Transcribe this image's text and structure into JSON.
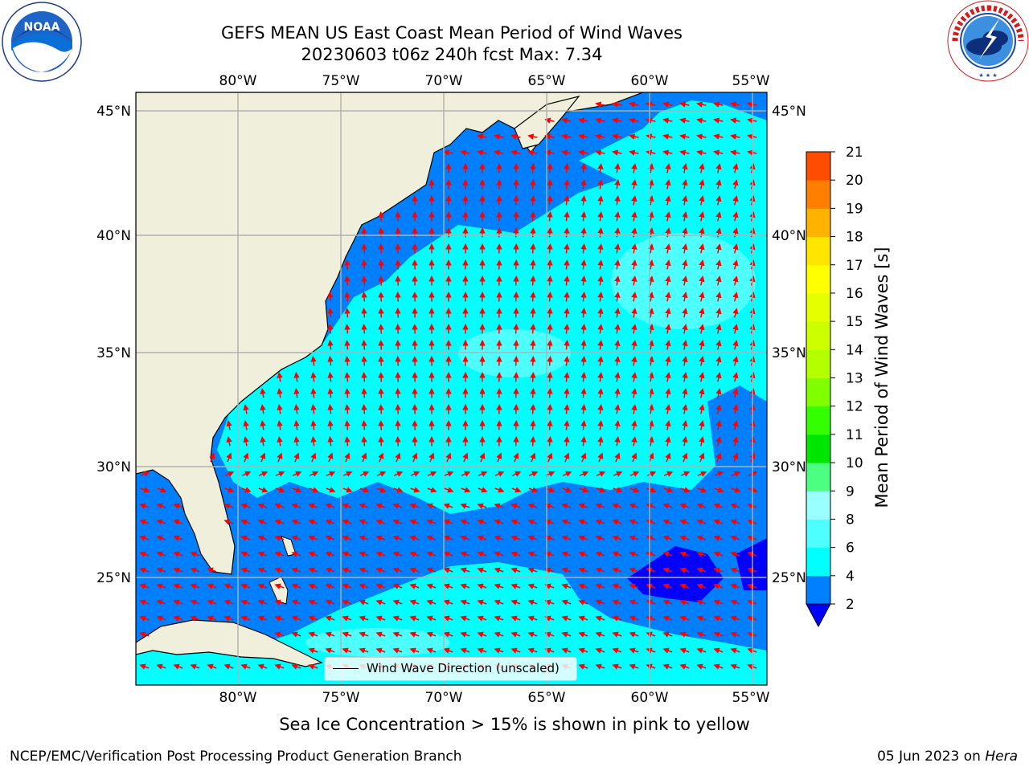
{
  "title": {
    "line1": "GEFS MEAN US East Coast Mean Period of Wind Waves",
    "line2": "20230603 t06z 240h fcst   Max: 7.34"
  },
  "logos": {
    "left": "NOAA",
    "right": "NATIONAL WEATHER SERVICE"
  },
  "map": {
    "lon_ticks": [
      "80°W",
      "75°W",
      "70°W",
      "65°W",
      "60°W",
      "55°W"
    ],
    "lat_ticks": [
      "45°N",
      "40°N",
      "35°N",
      "30°N",
      "25°N"
    ],
    "lon_range": [
      -85,
      -54.4
    ],
    "lat_range": [
      20.4,
      45.9
    ],
    "colors": {
      "land": "#efefdc",
      "level_2_4": "#0080ff",
      "level_4_6": "#00ffff",
      "level_6_8": "#4dffff",
      "below_2": "#0000ff",
      "arrows": "#ff0000",
      "grid": "#b0b0b0"
    }
  },
  "legend": {
    "label": "Wind Wave Direction (unscaled)"
  },
  "colorbar": {
    "label": "Mean Period of Wind Waves [s]",
    "ticks": [
      "2",
      "4",
      "6",
      "8",
      "9",
      "10",
      "11",
      "12",
      "13",
      "14",
      "15",
      "16",
      "17",
      "18",
      "19",
      "20",
      "21"
    ],
    "colors": [
      "#0080ff",
      "#00ffff",
      "#4dffff",
      "#99ffff",
      "#4dff80",
      "#00e600",
      "#33ff00",
      "#80ff00",
      "#b3ff00",
      "#ccff00",
      "#e6ff00",
      "#ffff00",
      "#ffe600",
      "#ffb300",
      "#ff8000",
      "#ff4d00",
      "#ff1a00",
      "#ff0000"
    ],
    "extend_color": "#0000ff"
  },
  "footer": {
    "note": "Sea Ice Concentration > 15% is shown in pink to yellow",
    "left": "NCEP/EMC/Verification Post Processing Product Generation Branch",
    "right_prefix": "05 Jun 2023 on ",
    "right_machine": "Hera"
  }
}
